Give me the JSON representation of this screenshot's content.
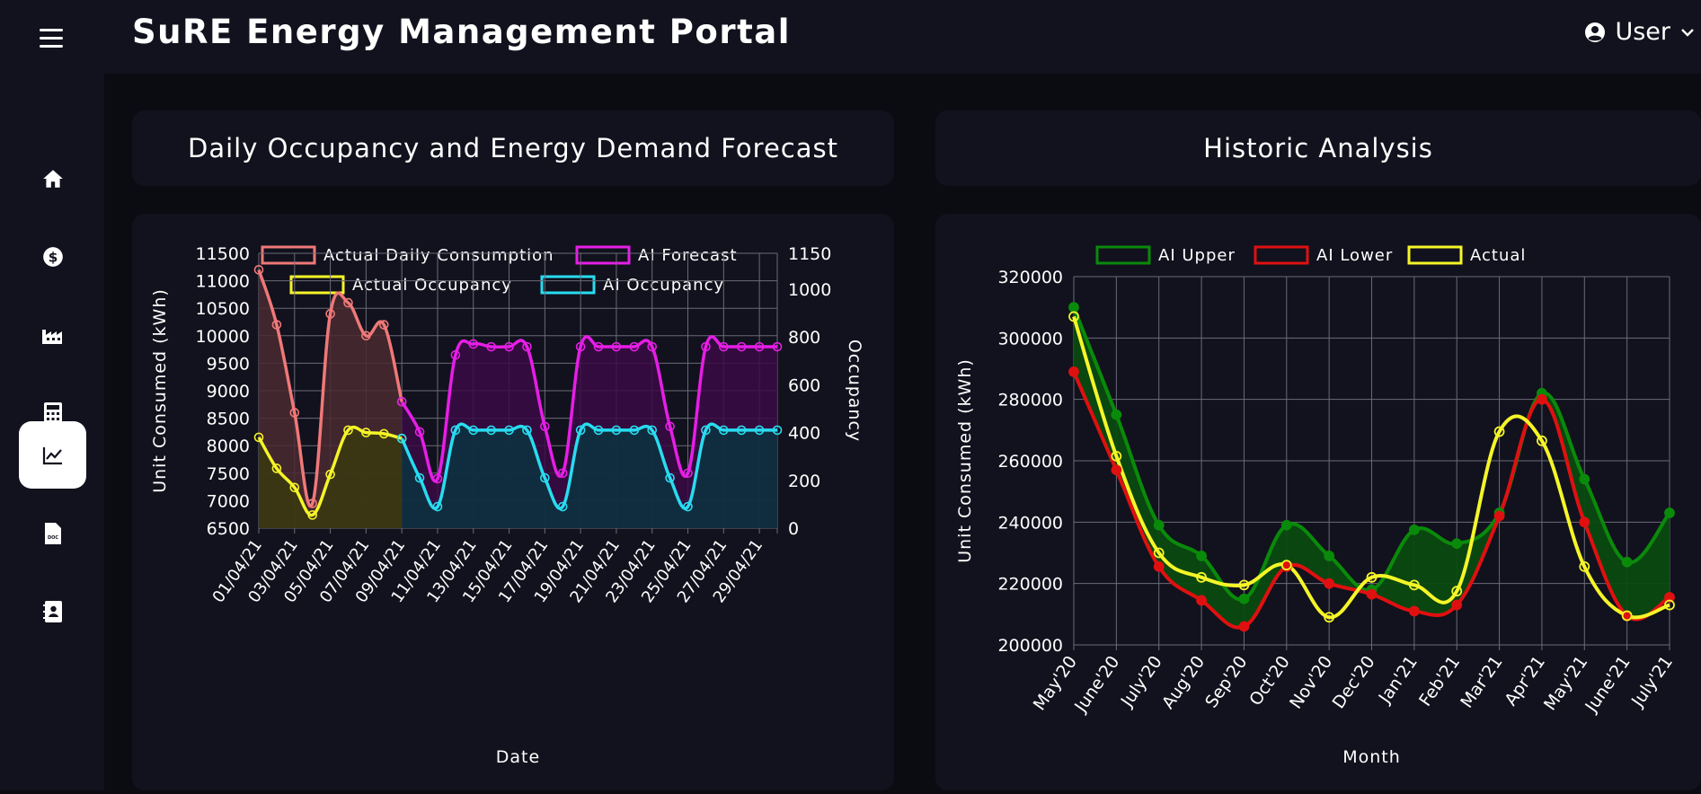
{
  "app": {
    "title": "SuRE Energy Management Portal",
    "user_label": "User"
  },
  "sidebar": {
    "items": [
      {
        "name": "home-icon"
      },
      {
        "name": "dollar-icon"
      },
      {
        "name": "factory-icon"
      },
      {
        "name": "calculator-icon"
      },
      {
        "name": "chart-line-icon",
        "active": true
      },
      {
        "name": "document-icon"
      },
      {
        "name": "contact-book-icon"
      }
    ]
  },
  "panels": {
    "left_title": "Daily Occupancy and Energy Demand Forecast",
    "right_title": "Historic Analysis"
  },
  "chart_data": [
    {
      "type": "line",
      "title": "",
      "xlabel": "Date",
      "ylabel": "Unit Consumed (kWh)",
      "y2label": "Occupancy",
      "ylim": [
        6500,
        11500
      ],
      "y2lim": [
        0,
        1150
      ],
      "yticks": [
        6500,
        7000,
        7500,
        8000,
        8500,
        9000,
        9500,
        10000,
        10500,
        11000,
        11500
      ],
      "y2ticks": [
        0,
        200,
        400,
        600,
        800,
        1000,
        1150
      ],
      "x": [
        "01/04/21",
        "02/04/21",
        "03/04/21",
        "04/04/21",
        "05/04/21",
        "06/04/21",
        "07/04/21",
        "08/04/21",
        "09/04/21",
        "10/04/21",
        "11/04/21",
        "12/04/21",
        "13/04/21",
        "14/04/21",
        "15/04/21",
        "16/04/21",
        "17/04/21",
        "18/04/21",
        "19/04/21",
        "20/04/21",
        "21/04/21",
        "22/04/21",
        "23/04/21",
        "24/04/21",
        "25/04/21",
        "26/04/21",
        "27/04/21",
        "28/04/21",
        "29/04/21",
        "30/04/21"
      ],
      "xticks": [
        "01/04/21",
        "03/04/21",
        "05/04/21",
        "07/04/21",
        "09/04/21",
        "11/04/21",
        "13/04/21",
        "15/04/21",
        "17/04/21",
        "19/04/21",
        "21/04/21",
        "23/04/21",
        "25/04/21",
        "27/04/21",
        "29/04/21"
      ],
      "grid": true,
      "legend_position": "top",
      "series": [
        {
          "name": "Actual Daily Consumption",
          "axis": "left",
          "color": "#f07878",
          "fill": "#4a2a30",
          "values": [
            11200,
            10200,
            8600,
            6950,
            10400,
            10600,
            10000,
            10200,
            8800,
            null,
            null,
            null,
            null,
            null,
            null,
            null,
            null,
            null,
            null,
            null,
            null,
            null,
            null,
            null,
            null,
            null,
            null,
            null,
            null,
            null
          ]
        },
        {
          "name": "AI Forecast",
          "axis": "left",
          "color": "#e61ee6",
          "fill": "#3a0a44",
          "values": [
            null,
            null,
            null,
            null,
            null,
            null,
            null,
            null,
            8800,
            8250,
            7400,
            9650,
            9850,
            9800,
            9800,
            9800,
            8350,
            7500,
            9800,
            9800,
            9800,
            9800,
            9800,
            8350,
            7500,
            9800,
            9800,
            9800,
            9800,
            9800
          ]
        },
        {
          "name": "Actual Occupancy",
          "axis": "right",
          "color": "#f5f528",
          "fill": "#3a3a10",
          "values": [
            380,
            250,
            170,
            55,
            225,
            410,
            400,
            395,
            375,
            null,
            null,
            null,
            null,
            null,
            null,
            null,
            null,
            null,
            null,
            null,
            null,
            null,
            null,
            null,
            null,
            null,
            null,
            null,
            null,
            null
          ]
        },
        {
          "name": "AI Occupancy",
          "axis": "right",
          "color": "#28dcf0",
          "fill": "#0a3440",
          "values": [
            null,
            null,
            null,
            null,
            null,
            null,
            null,
            null,
            375,
            210,
            90,
            410,
            410,
            410,
            410,
            410,
            210,
            90,
            410,
            410,
            410,
            410,
            410,
            210,
            90,
            410,
            410,
            410,
            410,
            410
          ]
        }
      ]
    },
    {
      "type": "line",
      "title": "",
      "xlabel": "Month",
      "ylabel": "Unit Consumed (kWh)",
      "ylim": [
        200000,
        320000
      ],
      "yticks": [
        200000,
        220000,
        240000,
        260000,
        280000,
        300000,
        320000
      ],
      "categories": [
        "May'20",
        "June'20",
        "July'20",
        "Aug'20",
        "Sep'20",
        "Oct'20",
        "Nov'20",
        "Dec'20",
        "Jan'21",
        "Feb'21",
        "Mar'21",
        "Apr'21",
        "May'21",
        "June'21",
        "July'21"
      ],
      "grid": true,
      "legend_position": "top",
      "series": [
        {
          "name": "AI Upper",
          "color": "#0a8a0a",
          "values": [
            310000,
            275000,
            239000,
            229000,
            215000,
            239000,
            229000,
            218000,
            237500,
            233000,
            243000,
            282000,
            254000,
            227000,
            243000
          ]
        },
        {
          "name": "AI Lower",
          "color": "#e01010",
          "values": [
            289000,
            257000,
            225500,
            214500,
            206000,
            225500,
            220000,
            216500,
            211000,
            213000,
            242000,
            280000,
            240000,
            209500,
            215500
          ]
        },
        {
          "name": "Actual",
          "color": "#f5f528",
          "values": [
            307000,
            261500,
            230000,
            222000,
            219500,
            226000,
            209000,
            222000,
            219500,
            217500,
            269500,
            266500,
            225500,
            209500,
            213000
          ]
        }
      ]
    }
  ]
}
